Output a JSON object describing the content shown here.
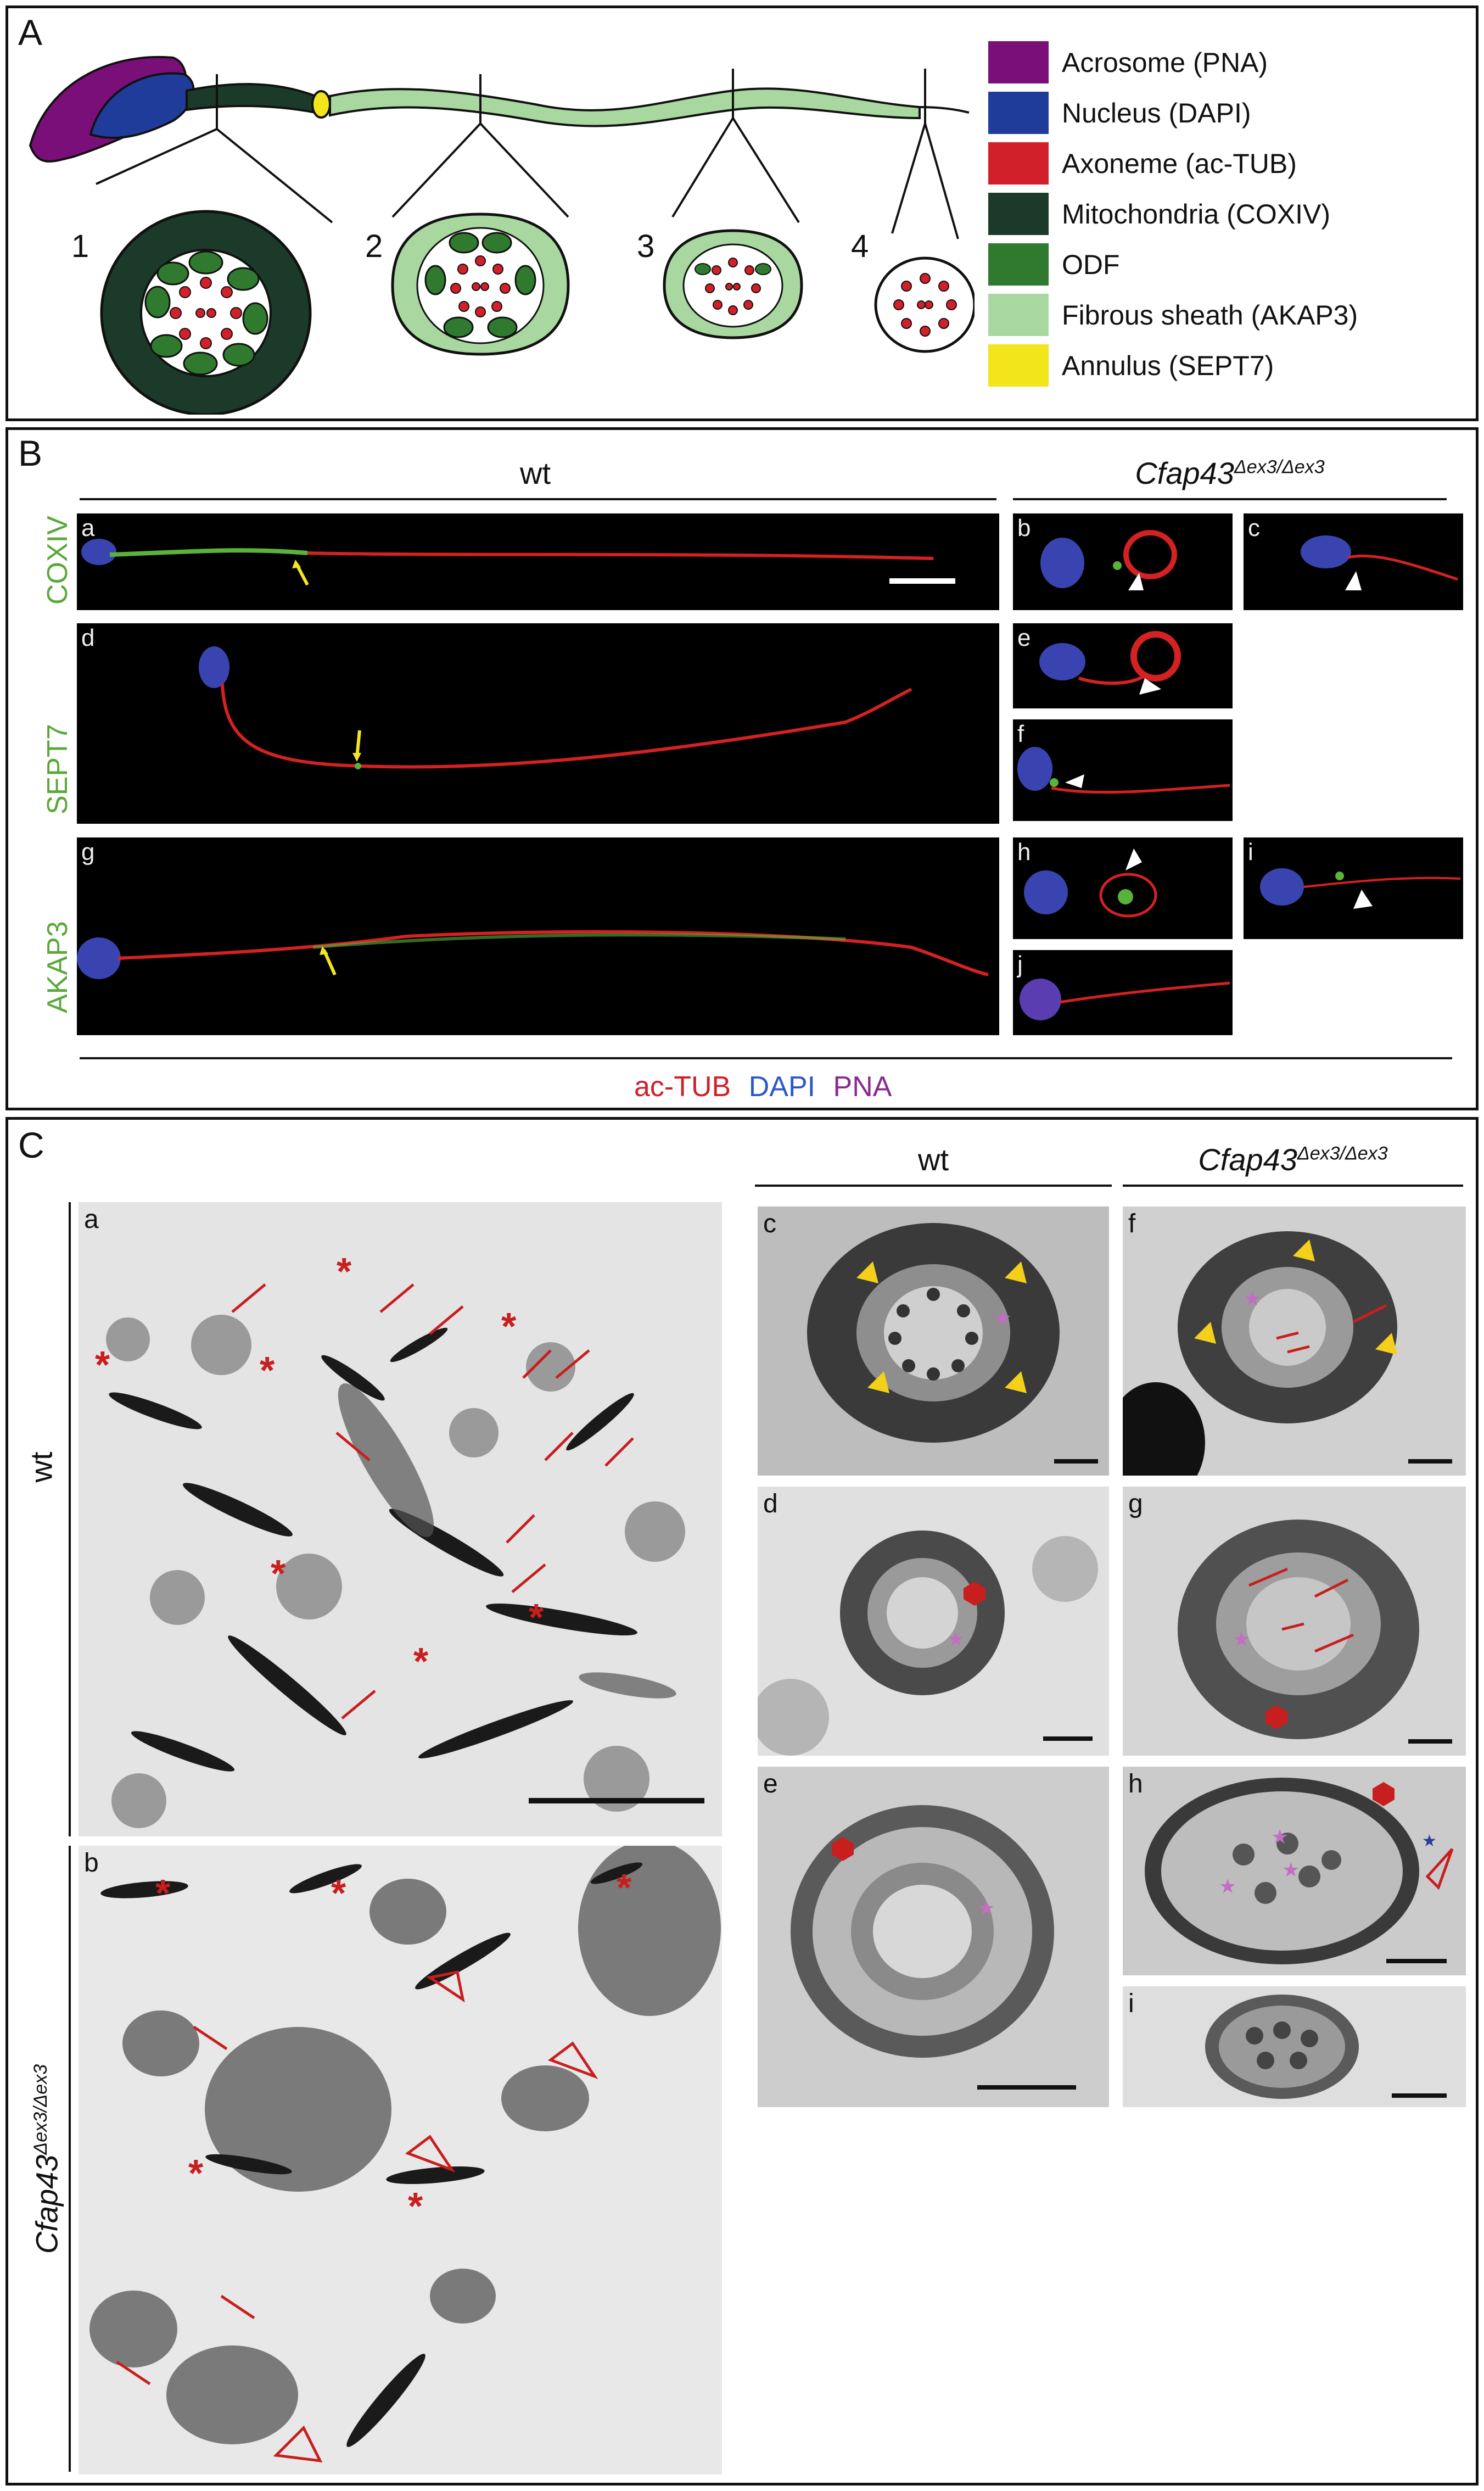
{
  "panelA": {
    "label": "A",
    "sections": [
      "1",
      "2",
      "3",
      "4"
    ],
    "legend": [
      {
        "label": "Acrosome (PNA)",
        "color": "#7b0f7a"
      },
      {
        "label": "Nucleus (DAPI)",
        "color": "#1f3c9b"
      },
      {
        "label": "Axoneme (ac-TUB)",
        "color": "#d1202a"
      },
      {
        "label": "Mitochondria (COXIV)",
        "color": "#1c3a2a"
      },
      {
        "label": "ODF",
        "color": "#2f7a2f"
      },
      {
        "label": "Fibrous sheath (AKAP3)",
        "color": "#a8d8a0"
      },
      {
        "label": "Annulus (SEPT7)",
        "color": "#f2e51b"
      }
    ]
  },
  "panelB": {
    "label": "B",
    "header_wt": "wt",
    "header_mut_base": "Cfap43",
    "header_mut_sup": "Δex3/Δex3",
    "rows": [
      "COXIV",
      "SEPT7",
      "AKAP3"
    ],
    "sub": [
      "a",
      "b",
      "c",
      "d",
      "e",
      "f",
      "g",
      "h",
      "i",
      "j"
    ],
    "stain_legend": [
      {
        "label": "ac-TUB",
        "color": "#d1202a"
      },
      {
        "label": "DAPI",
        "color": "#2c59c9"
      },
      {
        "label": "PNA",
        "color": "#8b2a8d"
      }
    ]
  },
  "panelC": {
    "label": "C",
    "row_wt": "wt",
    "row_mut_base": "Cfap43",
    "row_mut_sup": "Δex3/Δex3",
    "header_wt": "wt",
    "header_mut_base": "Cfap43",
    "header_mut_sup": "Δex3/Δex3",
    "sub": [
      "a",
      "b",
      "c",
      "d",
      "e",
      "f",
      "g",
      "h",
      "i"
    ]
  }
}
